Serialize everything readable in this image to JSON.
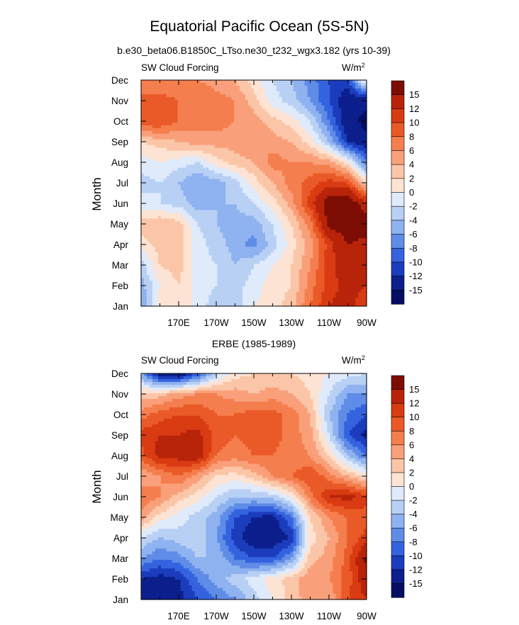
{
  "figure": {
    "title": "Equatorial Pacific Ocean (5S-5N)"
  },
  "chart_data": [
    {
      "type": "heatmap",
      "title": "b.e30_beta06.B1850C_LTso.ne30_t232_wgx3.182 (yrs 10-39)",
      "left_label": "SW Cloud Forcing",
      "units": "W/m",
      "units_superscript": "2",
      "ylabel": "Month",
      "xlabel": "",
      "x_ticks": [
        "170E",
        "170W",
        "150W",
        "130W",
        "110W",
        "90W"
      ],
      "x_tick_lon": [
        170,
        190,
        210,
        230,
        250,
        270
      ],
      "x_range": [
        150,
        270
      ],
      "y_ticks": [
        "Jan",
        "Feb",
        "Mar",
        "Apr",
        "May",
        "Jun",
        "Jul",
        "Aug",
        "Sep",
        "Oct",
        "Nov",
        "Dec"
      ],
      "colorbar_labels": [
        "15",
        "12",
        "10",
        "8",
        "6",
        "4",
        "2",
        "0",
        "-2",
        "-4",
        "-6",
        "-8",
        "-10",
        "-12",
        "-15"
      ],
      "colorbar_colors": [
        "#7c0d04",
        "#b8240a",
        "#d93b12",
        "#ea5a28",
        "#f57e4e",
        "#f9a07a",
        "#fbc6a8",
        "#fde3d3",
        "#dfeafb",
        "#b9d0f5",
        "#8fb2f0",
        "#5f8ce6",
        "#3563df",
        "#1b3dbd",
        "#0c1f8c",
        "#050e63"
      ],
      "grid_z_approx": [
        [
          -6,
          1,
          2,
          -1,
          -3,
          -3,
          0,
          1,
          3,
          8,
          12,
          13,
          10
        ],
        [
          -5,
          0,
          2,
          -1,
          -2,
          -3,
          -1,
          1,
          2,
          7,
          11,
          13,
          12
        ],
        [
          -3,
          2,
          3,
          -1,
          -2,
          -4,
          -2,
          0,
          2,
          6,
          11,
          14,
          13
        ],
        [
          1,
          3,
          3,
          -1,
          -3,
          -5,
          -7,
          -3,
          1,
          5,
          11,
          15,
          14
        ],
        [
          3,
          4,
          3,
          -2,
          -4,
          -5,
          -5,
          -2,
          2,
          7,
          16,
          17,
          17
        ],
        [
          -1,
          -2,
          -3,
          -5,
          -4,
          -4,
          -2,
          1,
          5,
          11,
          17,
          18,
          13
        ],
        [
          -3,
          -2,
          -4,
          -6,
          -5,
          -3,
          1,
          4,
          7,
          9,
          11,
          10,
          2
        ],
        [
          -1,
          0,
          -1,
          -2,
          1,
          3,
          4,
          7,
          6,
          6,
          5,
          1,
          -8
        ],
        [
          2,
          3,
          4,
          5,
          5,
          5,
          6,
          5,
          4,
          1,
          -4,
          -12,
          -14
        ],
        [
          10,
          10,
          8,
          7,
          7,
          6,
          5,
          3,
          1,
          -2,
          -8,
          -14,
          -16
        ],
        [
          9,
          9,
          8,
          8,
          7,
          6,
          3,
          -1,
          -3,
          -6,
          -10,
          -14,
          -14
        ],
        [
          6,
          6,
          6,
          6,
          5,
          4,
          1,
          -2,
          -4,
          -7,
          -10,
          -11,
          2
        ]
      ]
    },
    {
      "type": "heatmap",
      "title": "ERBE (1985-1989)",
      "left_label": "SW Cloud Forcing",
      "units": "W/m",
      "units_superscript": "2",
      "ylabel": "Month",
      "xlabel": "",
      "x_ticks": [
        "170E",
        "170W",
        "150W",
        "130W",
        "110W",
        "90W"
      ],
      "x_tick_lon": [
        170,
        190,
        210,
        230,
        250,
        270
      ],
      "x_range": [
        150,
        270
      ],
      "y_ticks": [
        "Jan",
        "Feb",
        "Mar",
        "Apr",
        "May",
        "Jun",
        "Jul",
        "Aug",
        "Sep",
        "Oct",
        "Nov",
        "Dec"
      ],
      "colorbar_labels": [
        "15",
        "12",
        "10",
        "8",
        "6",
        "4",
        "2",
        "0",
        "-2",
        "-4",
        "-6",
        "-8",
        "-10",
        "-12",
        "-15"
      ],
      "colorbar_colors": [
        "#7c0d04",
        "#b8240a",
        "#d93b12",
        "#ea5a28",
        "#f57e4e",
        "#f9a07a",
        "#fbc6a8",
        "#fde3d3",
        "#dfeafb",
        "#b9d0f5",
        "#8fb2f0",
        "#5f8ce6",
        "#3563df",
        "#1b3dbd",
        "#0c1f8c",
        "#050e63"
      ],
      "grid_z_approx": [
        [
          -15,
          -15,
          -13,
          -10,
          -8,
          -6,
          -3,
          0,
          3,
          5,
          4,
          10,
          12
        ],
        [
          -12,
          -13,
          -12,
          -8,
          -5,
          -3,
          -1,
          1,
          3,
          6,
          6,
          9,
          14
        ],
        [
          -6,
          -8,
          -7,
          -4,
          -4,
          -8,
          -10,
          -10,
          -6,
          3,
          5,
          9,
          16
        ],
        [
          -2,
          -4,
          -3,
          -2,
          -6,
          -11,
          -14,
          -14,
          -12,
          1,
          4,
          8,
          11
        ],
        [
          5,
          1,
          -1,
          -3,
          -5,
          -10,
          -12,
          -13,
          -8,
          2,
          6,
          8,
          9
        ],
        [
          8,
          6,
          3,
          1,
          -2,
          -4,
          -4,
          -3,
          0,
          7,
          12,
          13,
          11
        ],
        [
          4,
          6,
          8,
          5,
          2,
          1,
          3,
          6,
          8,
          10,
          7,
          4,
          1
        ],
        [
          9,
          13,
          13,
          14,
          8,
          7,
          8,
          8,
          7,
          6,
          2,
          -4,
          -8
        ],
        [
          11,
          12,
          12,
          13,
          9,
          8,
          9,
          9,
          7,
          5,
          -2,
          -10,
          -13
        ],
        [
          7,
          9,
          10,
          10,
          8,
          8,
          9,
          9,
          7,
          4,
          -4,
          -8,
          -10
        ],
        [
          3,
          3,
          5,
          6,
          6,
          5,
          4,
          5,
          4,
          2,
          -2,
          -6,
          -6
        ],
        [
          -6,
          -14,
          -15,
          -10,
          -3,
          1,
          2,
          2,
          2,
          1,
          0,
          -1,
          -2
        ]
      ]
    }
  ]
}
